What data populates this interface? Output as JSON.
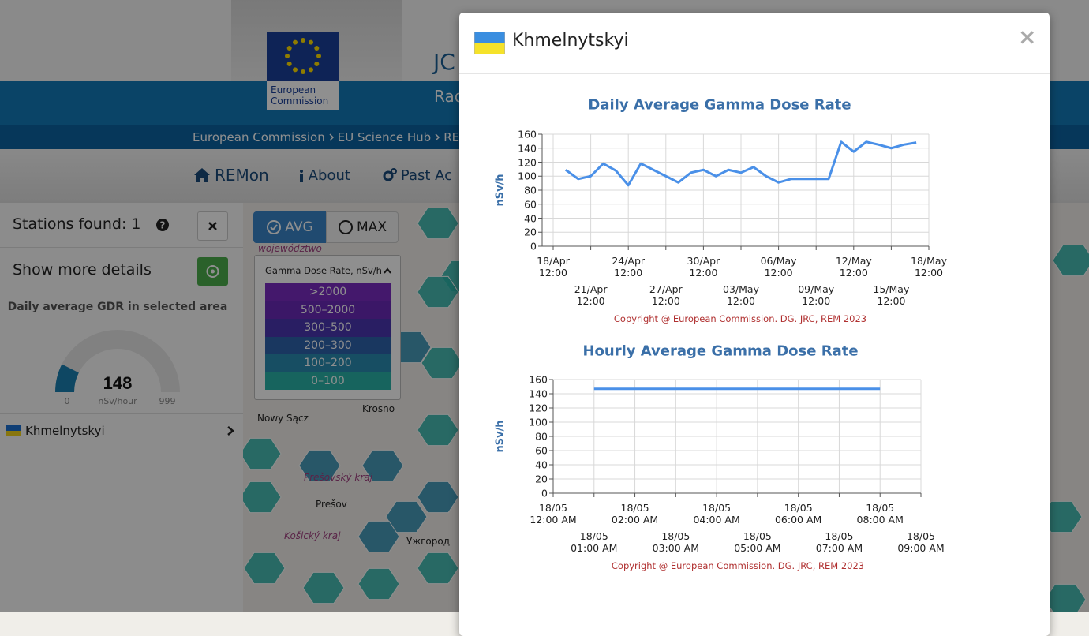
{
  "header": {
    "logo_lines": [
      "European",
      "Commission"
    ],
    "title_partial": "JC",
    "subtitle_partial": "Rad"
  },
  "breadcrumb": [
    "European Commission",
    "EU Science Hub",
    "RE"
  ],
  "nav": [
    "REMon",
    "About",
    "Past Ac"
  ],
  "sidebar": {
    "stations_found": "Stations found: 1",
    "show_more": "Show more details",
    "gauge_title": "Daily average GDR in selected area",
    "gauge": {
      "value": 148,
      "min": 0,
      "max": 999,
      "unit": "nSv/hour",
      "color": "#1a7fb0"
    },
    "stations": [
      "Khmelnytskyi"
    ]
  },
  "map": {
    "buttons": [
      "AVG",
      "MAX"
    ],
    "legend": {
      "title": "Gamma Dose Rate, nSv/h",
      "items": [
        {
          "label": ">2000",
          "color": "#7a2cc0"
        },
        {
          "label": "500–2000",
          "color": "#6a2ab8"
        },
        {
          "label": "300–500",
          "color": "#4a36b0"
        },
        {
          "label": "200–300",
          "color": "#2e62ac"
        },
        {
          "label": "100–200",
          "color": "#2a8cb0"
        },
        {
          "label": "0–100",
          "color": "#2ab3a8"
        }
      ]
    },
    "places": [
      "województwo",
      "Nowy Sącz",
      "Krosno",
      "Prešovský kraj",
      "Prešov",
      "Košický kraj",
      "Ужгород"
    ]
  },
  "modal": {
    "title": "Khmelnytskyi",
    "close": "×"
  },
  "chart_data": [
    {
      "type": "line",
      "title": "Daily Average Gamma Dose Rate",
      "y_label": "nSv/h",
      "categories": [
        "18/Apr\n12:00",
        null,
        null,
        "21/Apr\n12:00",
        null,
        null,
        "24/Apr\n12:00",
        null,
        null,
        "27/Apr\n12:00",
        null,
        null,
        "30/Apr\n12:00",
        null,
        null,
        "03/May\n12:00",
        null,
        null,
        "06/May\n12:00",
        null,
        null,
        "09/May\n12:00",
        null,
        null,
        "12/May\n12:00",
        null,
        null,
        "15/May\n12:00",
        null,
        null,
        "18/May\n12:00"
      ],
      "series": [
        {
          "name": "Khmelnytskyi",
          "color": "#4a90e8",
          "values": [
            null,
            109,
            96,
            100,
            118,
            108,
            87,
            118,
            109,
            100,
            91,
            105,
            109,
            100,
            109,
            105,
            113,
            100,
            91,
            96,
            96,
            96,
            96,
            149,
            135,
            149,
            145,
            140,
            145,
            148,
            null
          ]
        }
      ],
      "ylim": [
        0,
        160
      ],
      "yticks": [
        0,
        20,
        40,
        60,
        80,
        100,
        120,
        140,
        160
      ],
      "grid": true,
      "copyright": "Copyright @ European Commission. DG. JRC, REM 2023"
    },
    {
      "type": "line",
      "title": "Hourly Average Gamma Dose Rate",
      "y_label": "nSv/h",
      "categories": [
        "18/05\n12:00 AM",
        "18/05\n01:00 AM",
        "18/05\n02:00 AM",
        "18/05\n03:00 AM",
        "18/05\n04:00 AM",
        "18/05\n05:00 AM",
        "18/05\n06:00 AM",
        "18/05\n07:00 AM",
        "18/05\n08:00 AM",
        "18/05\n09:00 AM"
      ],
      "series": [
        {
          "name": "Khmelnytskyi",
          "color": "#4a90e8",
          "values": [
            null,
            147,
            147,
            147,
            147,
            147,
            147,
            147,
            147,
            null
          ]
        }
      ],
      "ylim": [
        0,
        160
      ],
      "yticks": [
        0,
        20,
        40,
        60,
        80,
        100,
        120,
        140,
        160
      ],
      "grid": true,
      "copyright": "Copyright @ European Commission. DG. JRC, REM 2023"
    }
  ]
}
